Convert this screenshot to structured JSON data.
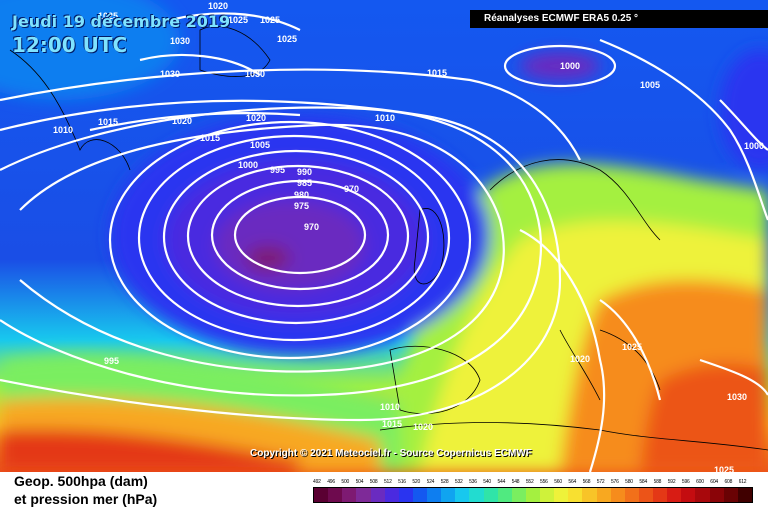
{
  "header": {
    "date": "Jeudi 19 décembre 2019",
    "time": "12:00 UTC",
    "source": "Réanalyses ECMWF ERA5 0.25 °"
  },
  "footer": {
    "copyright": "Copyright © 2021 Meteociel.fr - Source Copernicus ECMWF",
    "legend_line1": "Geop. 500hpa (dam)",
    "legend_line2": "et pression mer (hPa)"
  },
  "scale": {
    "labels": [
      "492",
      "496",
      "500",
      "504",
      "508",
      "512",
      "516",
      "520",
      "524",
      "528",
      "532",
      "536",
      "540",
      "544",
      "548",
      "552",
      "556",
      "560",
      "564",
      "568",
      "572",
      "576",
      "580",
      "584",
      "588",
      "592",
      "596",
      "600",
      "604",
      "608",
      "612"
    ],
    "colors": [
      "#5a0032",
      "#6e0a4e",
      "#7e1a72",
      "#7e2a98",
      "#6a2bc0",
      "#4a2ae0",
      "#2a34f0",
      "#1458f0",
      "#0e7ef0",
      "#10a4f0",
      "#18c8ee",
      "#22dcd0",
      "#30e4a8",
      "#50ea80",
      "#7aee60",
      "#a4f040",
      "#cff23a",
      "#eef23a",
      "#f8e030",
      "#f8c428",
      "#f8a820",
      "#f68c1c",
      "#f2701a",
      "#ec5418",
      "#e43816",
      "#d81c14",
      "#c40c10",
      "#a8080c",
      "#8a0408",
      "#6a0204",
      "#400000"
    ]
  },
  "pressure_labels": [
    "1025",
    "1020",
    "1025",
    "1025",
    "1030",
    "1030",
    "1030",
    "1025",
    "1010",
    "1015",
    "1020",
    "1020",
    "1010",
    "1015",
    "1005",
    "1000",
    "995",
    "990",
    "985",
    "980",
    "975",
    "970",
    "970",
    "995",
    "1015",
    "1000",
    "1005",
    "1010",
    "1015",
    "1020",
    "1020",
    "1025",
    "1030",
    "1025",
    "1000"
  ],
  "colors": {
    "isobar": "#ffffff",
    "coast": "#000000",
    "banner_bg": "#000000",
    "date_text": "#7fe3ff"
  }
}
